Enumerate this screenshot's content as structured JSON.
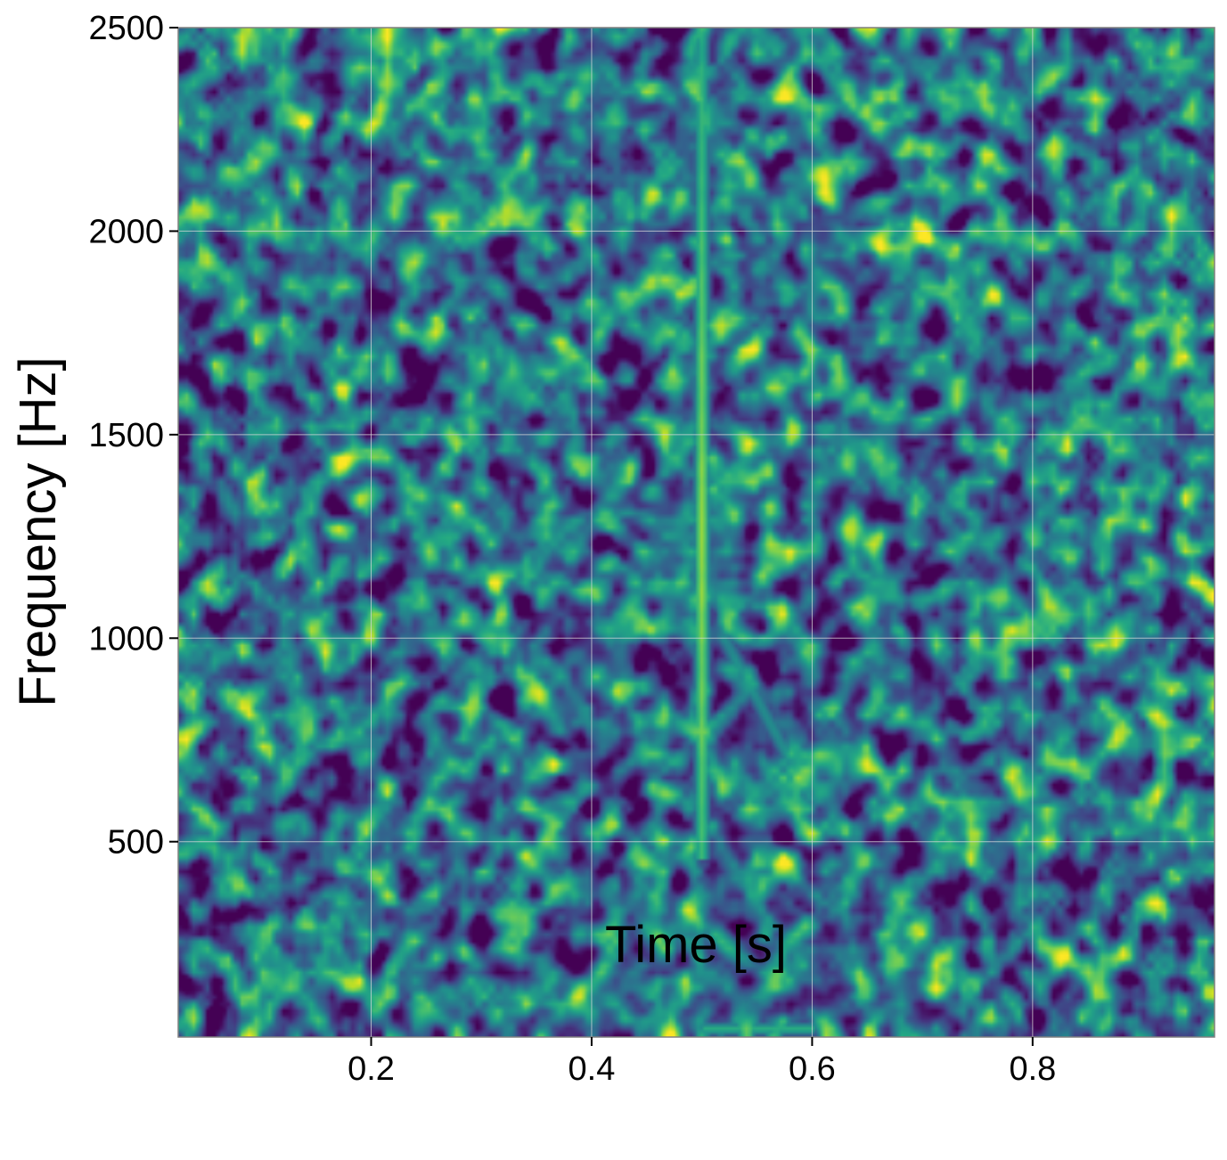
{
  "chart_data": {
    "type": "heatmap",
    "xlabel": "Time [s]",
    "ylabel": "Frequency [Hz]",
    "xlim": [
      0.025,
      0.965
    ],
    "ylim": [
      20,
      2500
    ],
    "x_ticks": [
      0.2,
      0.4,
      0.6,
      0.8
    ],
    "x_tick_labels": [
      "0.2",
      "0.4",
      "0.6",
      "0.8"
    ],
    "y_ticks": [
      500,
      1000,
      1500,
      2000,
      2500
    ],
    "y_tick_labels": [
      "500",
      "1000",
      "1500",
      "2000",
      "2500"
    ],
    "grid": true,
    "colormap": "viridis",
    "background": "noise",
    "features": [
      {
        "kind": "vertical-burst",
        "time": 0.5,
        "freq_range": [
          500,
          2500
        ],
        "peak_freq": 1250,
        "peak_intensity": 0.9
      },
      {
        "kind": "faint-chirp",
        "time_range": [
          0.5,
          0.6
        ],
        "freq_range": [
          600,
          1000
        ]
      },
      {
        "kind": "low-frequency-band",
        "time_range": [
          0.5,
          0.6
        ],
        "freq": 40
      }
    ]
  },
  "colors": {
    "grid": "#d9d9d9",
    "spine": "#808080",
    "viridis_dark": "#440154",
    "viridis_mid": "#21918c",
    "viridis_bright": "#fde725"
  }
}
